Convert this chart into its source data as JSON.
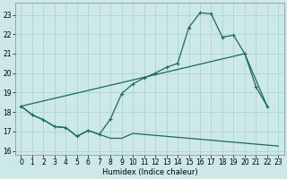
{
  "xlabel": "Humidex (Indice chaleur)",
  "xlim": [
    -0.5,
    23.5
  ],
  "ylim": [
    15.8,
    23.6
  ],
  "yticks": [
    16,
    17,
    18,
    19,
    20,
    21,
    22,
    23
  ],
  "xticks": [
    0,
    1,
    2,
    3,
    4,
    5,
    6,
    7,
    8,
    9,
    10,
    11,
    12,
    13,
    14,
    15,
    16,
    17,
    18,
    19,
    20,
    21,
    22,
    23
  ],
  "bg_color": "#cce8e8",
  "grid_color": "#aacfcf",
  "line_color": "#1a6b5a",
  "line1_x": [
    0,
    1,
    2,
    3,
    4,
    5,
    6,
    7,
    8,
    9,
    10,
    11,
    12,
    13,
    14,
    15,
    16,
    17,
    18,
    19,
    20,
    21,
    22,
    23
  ],
  "line1_y": [
    18.3,
    17.85,
    17.6,
    17.25,
    17.2,
    16.75,
    17.05,
    16.85,
    16.65,
    16.65,
    16.9,
    16.85,
    16.8,
    16.75,
    16.7,
    16.65,
    16.6,
    16.55,
    16.5,
    16.45,
    16.4,
    16.35,
    16.3,
    16.25
  ],
  "line2_x": [
    0,
    20,
    22
  ],
  "line2_y": [
    18.3,
    21.0,
    18.3
  ],
  "line3_x": [
    0,
    1,
    2,
    3,
    4,
    5,
    6,
    7,
    8,
    9,
    10,
    11,
    12,
    13,
    14,
    15,
    16,
    17,
    18,
    19,
    20,
    21,
    22
  ],
  "line3_y": [
    18.3,
    17.85,
    17.6,
    17.25,
    17.2,
    16.75,
    17.05,
    16.85,
    17.65,
    18.95,
    19.45,
    19.75,
    20.0,
    20.3,
    20.5,
    22.35,
    23.1,
    23.05,
    21.85,
    21.95,
    21.0,
    19.3,
    18.3
  ]
}
